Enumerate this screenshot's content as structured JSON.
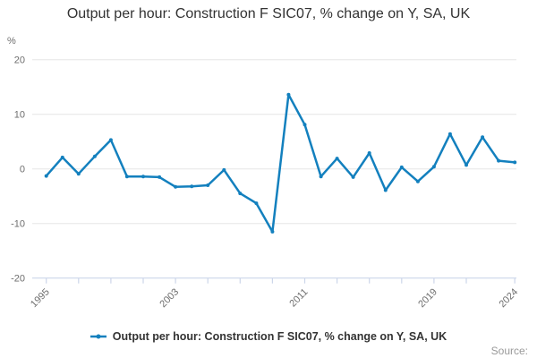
{
  "title": "Output per hour: Construction F SIC07, % change on Y, SA, UK",
  "legend": {
    "label": "Output per hour: Construction F SIC07, % change on Y, SA, UK"
  },
  "source": {
    "label": "Source:"
  },
  "chart_data": {
    "type": "line",
    "title": "Output per hour: Construction F SIC07, % change on Y, SA, UK",
    "ylabel": "%",
    "xlabel": "",
    "ylim": [
      -20,
      20
    ],
    "grid": "horizontal",
    "legend_position": "bottom",
    "y_ticks": [
      20,
      10,
      0,
      -10,
      -20
    ],
    "x": [
      1995,
      1996,
      1997,
      1998,
      1999,
      2000,
      2001,
      2002,
      2003,
      2004,
      2005,
      2006,
      2007,
      2008,
      2009,
      2010,
      2011,
      2012,
      2013,
      2014,
      2015,
      2016,
      2017,
      2018,
      2019,
      2020,
      2021,
      2022,
      2023,
      2024
    ],
    "x_tick_years": [
      1995,
      1997,
      1999,
      2001,
      2003,
      2005,
      2007,
      2009,
      2011,
      2013,
      2015,
      2017,
      2019,
      2021,
      2024
    ],
    "x_tick_labels": [
      "1995",
      "2003",
      "2011",
      "2019",
      "2024"
    ],
    "series": [
      {
        "name": "Output per hour: Construction F SIC07, % change on Y, SA, UK",
        "values": [
          -1.3,
          2.1,
          -0.9,
          2.3,
          5.3,
          -1.4,
          -1.4,
          -1.5,
          -3.3,
          -3.2,
          -3.0,
          -0.2,
          -4.5,
          -6.3,
          -11.5,
          13.6,
          8.1,
          -1.4,
          1.9,
          -1.5,
          2.9,
          -3.9,
          0.3,
          -2.3,
          0.4,
          6.4,
          0.7,
          5.8,
          1.5,
          1.2
        ]
      }
    ],
    "colors": {
      "line": "#1380be",
      "grid": "#e6e6e6",
      "axis": "#ccd6ea",
      "tick_text": "#6e6e6e",
      "title_text": "#333333",
      "source_text": "#999999"
    }
  }
}
